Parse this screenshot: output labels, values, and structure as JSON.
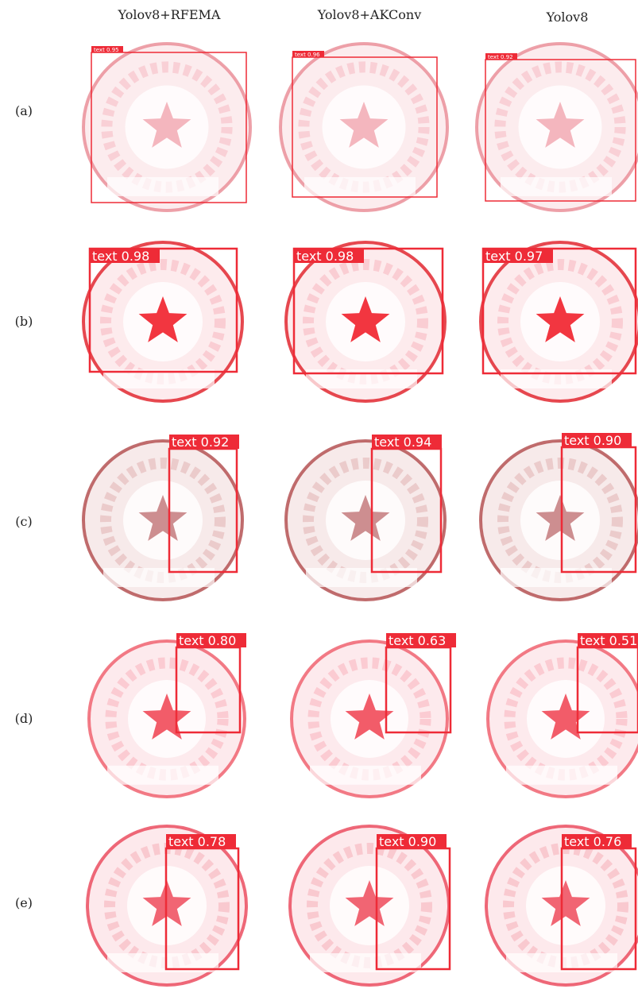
{
  "columns": [
    "Yolov8+RFEMA",
    "Yolov8+AKConv",
    "Yolov8"
  ],
  "rows": [
    {
      "label": "(a)",
      "cells": [
        "text 0.95",
        "text 0.96",
        "text 0.92"
      ]
    },
    {
      "label": "(b)",
      "cells": [
        "text 0.98",
        "text 0.98",
        "text 0.97"
      ]
    },
    {
      "label": "(c)",
      "cells": [
        "text 0.92",
        "text 0.94",
        "text 0.90"
      ]
    },
    {
      "label": "(d)",
      "cells": [
        "text 0.80",
        "text 0.63",
        "text 0.51"
      ]
    },
    {
      "label": "(e)",
      "cells": [
        "text 0.78",
        "text 0.90",
        "text 0.76"
      ]
    }
  ]
}
